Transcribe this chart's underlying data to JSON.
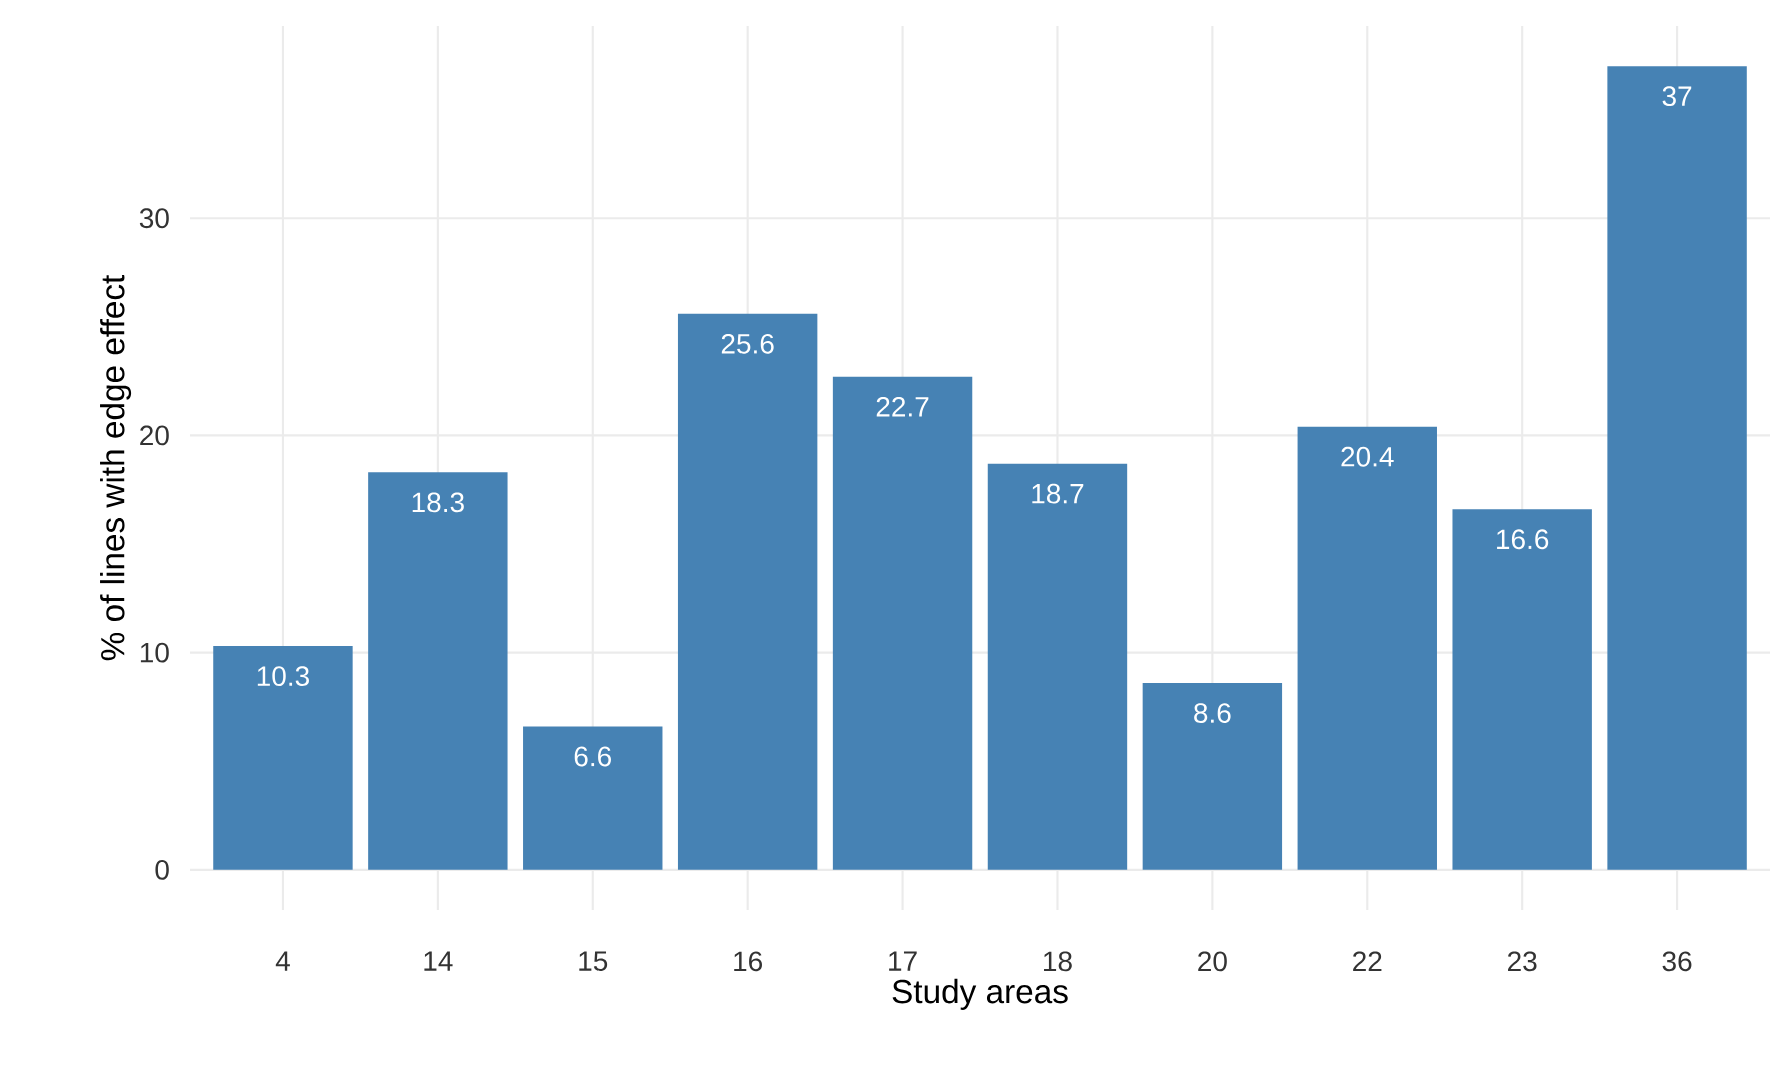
{
  "chart_data": {
    "type": "bar",
    "xlabel": "Study areas",
    "ylabel": "% of lines with edge effect",
    "categories": [
      "4",
      "14",
      "15",
      "16",
      "17",
      "18",
      "20",
      "22",
      "23",
      "36"
    ],
    "values": [
      10.3,
      18.3,
      6.6,
      25.6,
      22.7,
      18.7,
      8.6,
      20.4,
      16.6,
      37
    ],
    "color": "#4682b4",
    "data_labels": true,
    "grid": true,
    "ylim": [
      -1.85,
      38.85
    ],
    "yticks": [
      0,
      10,
      20,
      30
    ]
  }
}
